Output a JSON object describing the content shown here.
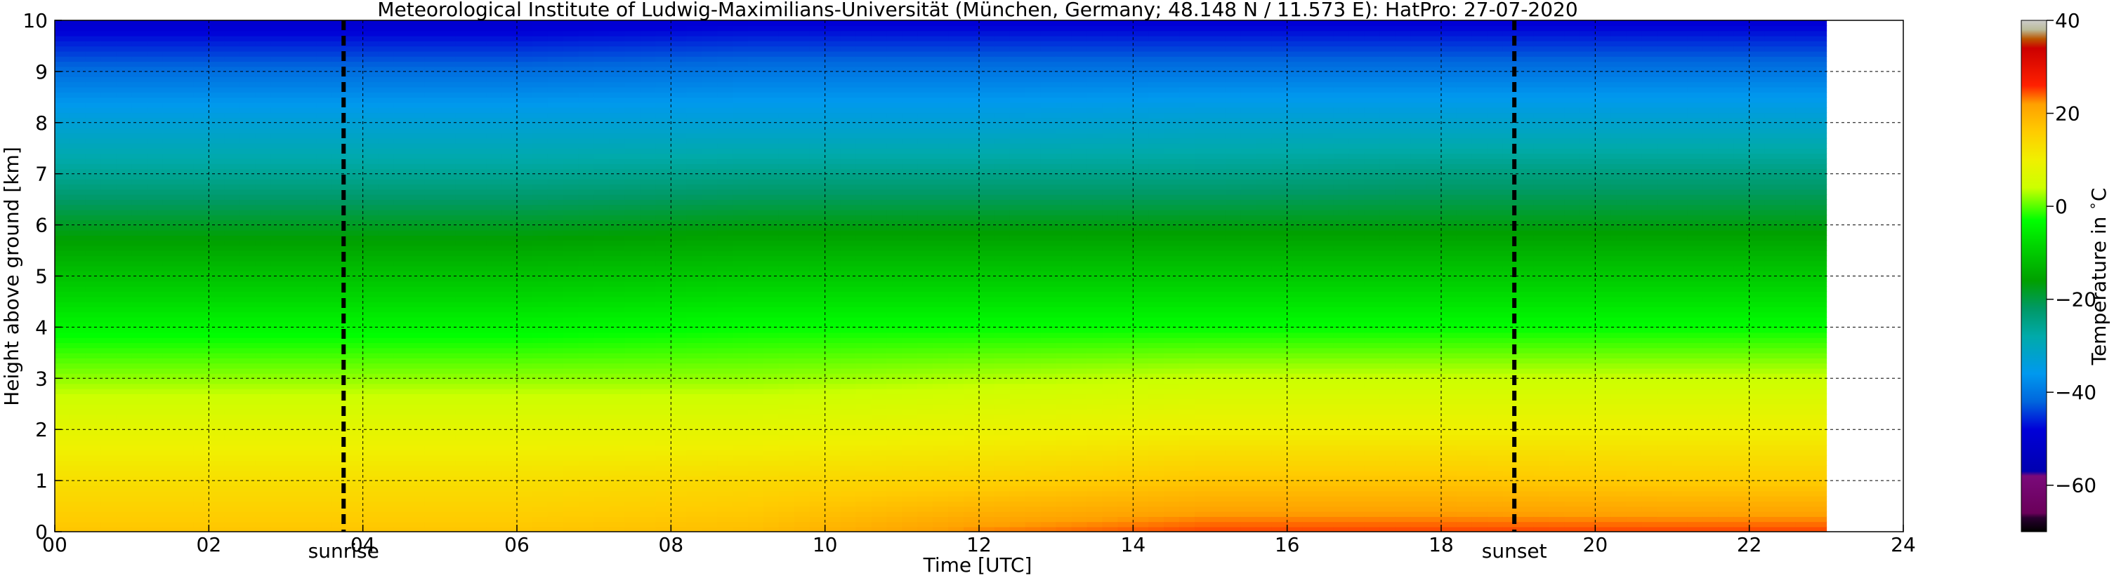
{
  "chart_data": {
    "type": "heatmap",
    "title": "Meteorological Institute of Ludwig-Maximilians-Universität (München, Germany; 48.148 N / 11.573 E):    HatPro: 27-07-2020",
    "xlabel": "Time [UTC]",
    "ylabel": "Height above ground [km]",
    "xlim": [
      0,
      24
    ],
    "ylim": [
      0,
      10
    ],
    "x_ticks": [
      "00",
      "02",
      "04",
      "06",
      "08",
      "10",
      "12",
      "14",
      "16",
      "18",
      "20",
      "22",
      "24"
    ],
    "y_ticks": [
      "0",
      "1",
      "2",
      "3",
      "4",
      "5",
      "6",
      "7",
      "8",
      "9",
      "10"
    ],
    "grid": true,
    "data_x_range": [
      0,
      23
    ],
    "times": [
      0,
      3,
      6,
      9,
      12,
      15,
      18,
      21,
      23
    ],
    "heights": [
      0,
      1,
      2,
      3,
      4,
      5,
      6,
      7,
      8,
      9,
      10
    ],
    "temperature": [
      [
        17,
        17,
        17,
        18,
        23,
        25,
        25,
        25,
        25
      ],
      [
        13,
        13,
        13,
        14,
        15,
        17,
        17,
        16,
        16
      ],
      [
        8,
        8,
        8,
        8,
        9,
        10,
        10,
        10,
        10
      ],
      [
        2,
        2,
        2,
        2,
        3,
        4,
        4,
        4,
        4
      ],
      [
        -4,
        -4,
        -4,
        -3,
        -3,
        -3,
        -3,
        -3,
        -3
      ],
      [
        -11,
        -11,
        -11,
        -10,
        -10,
        -10,
        -10,
        -10,
        -10
      ],
      [
        -18,
        -18,
        -18,
        -17,
        -17,
        -17,
        -17,
        -17,
        -17
      ],
      [
        -26,
        -26,
        -26,
        -25,
        -25,
        -25,
        -24,
        -24,
        -24
      ],
      [
        -33,
        -33,
        -33,
        -33,
        -33,
        -32,
        -32,
        -32,
        -32
      ],
      [
        -41,
        -41,
        -41,
        -40,
        -40,
        -40,
        -40,
        -40,
        -40
      ],
      [
        -50,
        -50,
        -50,
        -49,
        -49,
        -49,
        -49,
        -49,
        -49
      ]
    ],
    "markers": [
      {
        "label": "sunrise",
        "x": 3.75
      },
      {
        "label": "sunset",
        "x": 18.95
      }
    ],
    "colorbar": {
      "label": "Temperature in $^\\circ$C",
      "range": [
        -70,
        40
      ],
      "ticks": [
        "40",
        "20",
        "0",
        "−20",
        "−40",
        "−60"
      ],
      "stops": [
        {
          "t": -70,
          "color": "#000000"
        },
        {
          "t": -67,
          "color": "#2a0030"
        },
        {
          "t": -66,
          "color": "#6a005a"
        },
        {
          "t": -58,
          "color": "#7a0a7a"
        },
        {
          "t": -57,
          "color": "#0000b0"
        },
        {
          "t": -48,
          "color": "#0000d8"
        },
        {
          "t": -42,
          "color": "#0066dd"
        },
        {
          "t": -36,
          "color": "#0099ee"
        },
        {
          "t": -28,
          "color": "#00aaaa"
        },
        {
          "t": -22,
          "color": "#009966"
        },
        {
          "t": -16,
          "color": "#00a000"
        },
        {
          "t": -8,
          "color": "#00d800"
        },
        {
          "t": -3,
          "color": "#00ff00"
        },
        {
          "t": 4,
          "color": "#ccff00"
        },
        {
          "t": 10,
          "color": "#f0f000"
        },
        {
          "t": 16,
          "color": "#ffcc00"
        },
        {
          "t": 22,
          "color": "#ffa000"
        },
        {
          "t": 26,
          "color": "#ff2000"
        },
        {
          "t": 34,
          "color": "#cc0000"
        },
        {
          "t": 36,
          "color": "#bb5500"
        },
        {
          "t": 38,
          "color": "#bbbb99"
        },
        {
          "t": 40,
          "color": "#cccccc"
        }
      ]
    }
  }
}
